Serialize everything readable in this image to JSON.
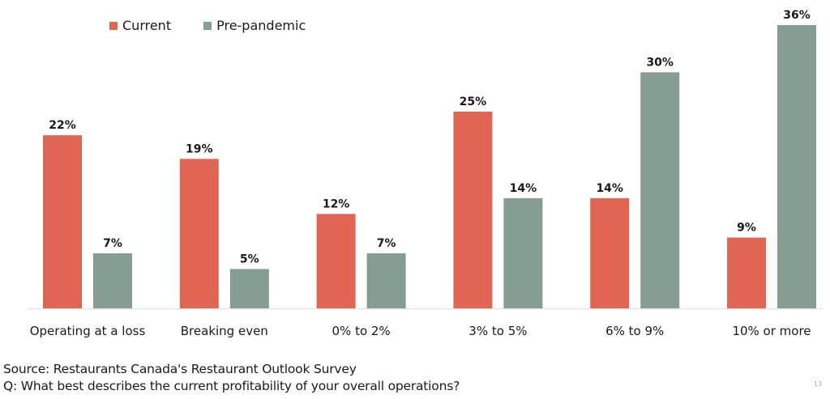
{
  "chart_data": {
    "type": "bar",
    "title": "",
    "xlabel": "",
    "ylabel": "",
    "ylim": [
      0,
      36
    ],
    "grid": false,
    "legend_position": "top-left",
    "categories": [
      "Operating at a loss",
      "Breaking even",
      "0% to 2%",
      "3% to 5%",
      "6% to 9%",
      "10% or more"
    ],
    "series": [
      {
        "name": "Current",
        "color": "#e06555",
        "values": [
          22,
          19,
          12,
          25,
          14,
          9
        ]
      },
      {
        "name": "Pre-pandemic",
        "color": "#869e92",
        "values": [
          7,
          5,
          7,
          14,
          30,
          36
        ]
      }
    ],
    "value_suffix": "%"
  },
  "footer": {
    "source": "Source: Restaurants Canada's Restaurant Outlook Survey",
    "question": "Q: What best describes the current profitability of your overall operations?"
  },
  "page_number": "13"
}
